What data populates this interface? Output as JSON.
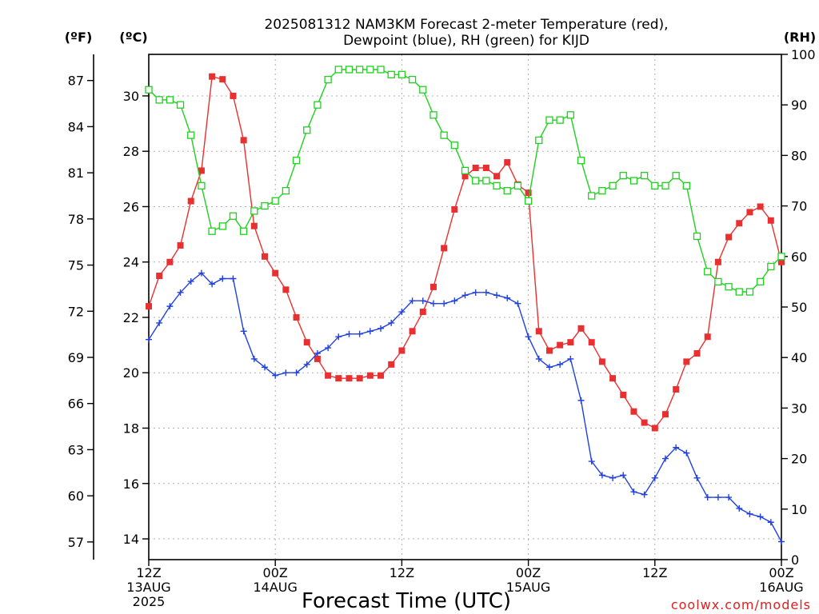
{
  "chart_data": {
    "type": "line",
    "title": "2025081312 NAM3KM Forecast 2-meter Temperature (red),",
    "subtitle": "Dewpoint (blue), RH (green) for KIJD",
    "xlabel": "Forecast Time (UTC)",
    "credit": "coolwx.com/models",
    "units": {
      "left_outer": "(ºF)",
      "left_inner": "(ºC)",
      "right": "(RH)"
    },
    "x_ticks": [
      {
        "hour": 0,
        "line1": "12Z",
        "line2": "13AUG",
        "line3": "2025"
      },
      {
        "hour": 12,
        "line1": "00Z",
        "line2": "14AUG",
        "line3": ""
      },
      {
        "hour": 24,
        "line1": "12Z",
        "line2": "",
        "line3": ""
      },
      {
        "hour": 36,
        "line1": "00Z",
        "line2": "15AUG",
        "line3": ""
      },
      {
        "hour": 48,
        "line1": "12Z",
        "line2": "",
        "line3": ""
      },
      {
        "hour": 60,
        "line1": "00Z",
        "line2": "16AUG",
        "line3": ""
      }
    ],
    "xlim": [
      0,
      60
    ],
    "celsius_ticks": [
      "14",
      "16",
      "18",
      "20",
      "22",
      "24",
      "26",
      "28",
      "30"
    ],
    "ylim_celsius": [
      13.25,
      31.5
    ],
    "fahrenheit_ticks": [
      "57",
      "60",
      "63",
      "66",
      "69",
      "72",
      "75",
      "78",
      "81",
      "84",
      "87"
    ],
    "rh_ticks": [
      "0",
      "10",
      "20",
      "30",
      "40",
      "50",
      "60",
      "70",
      "80",
      "90",
      "100"
    ],
    "ylim_rh": [
      0,
      100
    ],
    "series": [
      {
        "name": "Temperature",
        "color": "#e83030",
        "marker": "filled-square",
        "axis": "celsius",
        "x": [
          0,
          1,
          2,
          3,
          4,
          5,
          6,
          7,
          8,
          9,
          10,
          11,
          12,
          13,
          14,
          15,
          16,
          17,
          18,
          19,
          20,
          21,
          22,
          23,
          24,
          25,
          26,
          27,
          28,
          29,
          30,
          31,
          32,
          33,
          34,
          35,
          36,
          37,
          38,
          39,
          40,
          41,
          42,
          43,
          44,
          45,
          46,
          47,
          48,
          49,
          50,
          51,
          52,
          53,
          54,
          55,
          56,
          57,
          58,
          59,
          60
        ],
        "values": [
          22.4,
          23.5,
          24.0,
          24.6,
          26.2,
          27.3,
          30.7,
          30.6,
          30.0,
          28.4,
          25.3,
          24.2,
          23.6,
          23.0,
          22.0,
          21.1,
          20.5,
          19.9,
          19.8,
          19.8,
          19.8,
          19.9,
          19.9,
          20.3,
          20.8,
          21.5,
          22.2,
          23.1,
          24.5,
          25.9,
          27.1,
          27.4,
          27.4,
          27.1,
          27.6,
          26.8,
          26.5,
          21.5,
          20.8,
          21.0,
          21.1,
          21.6,
          21.1,
          20.4,
          19.8,
          19.2,
          18.6,
          18.2,
          18.0,
          18.5,
          19.4,
          20.4,
          20.7,
          21.3,
          24.0,
          24.9,
          25.4,
          25.8,
          26.0,
          25.5,
          24.0
        ]
      },
      {
        "name": "Dewpoint",
        "color": "#2040e0",
        "marker": "plus",
        "axis": "celsius",
        "x": [
          0,
          1,
          2,
          3,
          4,
          5,
          6,
          7,
          8,
          9,
          10,
          11,
          12,
          13,
          14,
          15,
          16,
          17,
          18,
          19,
          20,
          21,
          22,
          23,
          24,
          25,
          26,
          27,
          28,
          29,
          30,
          31,
          32,
          33,
          34,
          35,
          36,
          37,
          38,
          39,
          40,
          41,
          42,
          43,
          44,
          45,
          46,
          47,
          48,
          49,
          50,
          51,
          52,
          53,
          54,
          55,
          56,
          57,
          58,
          59,
          60
        ],
        "values": [
          21.2,
          21.8,
          22.4,
          22.9,
          23.3,
          23.6,
          23.2,
          23.4,
          23.4,
          21.5,
          20.5,
          20.2,
          19.9,
          20.0,
          20.0,
          20.3,
          20.7,
          20.9,
          21.3,
          21.4,
          21.4,
          21.5,
          21.6,
          21.8,
          22.2,
          22.6,
          22.6,
          22.5,
          22.5,
          22.6,
          22.8,
          22.9,
          22.9,
          22.8,
          22.7,
          22.5,
          21.3,
          20.5,
          20.2,
          20.3,
          20.5,
          19.0,
          16.8,
          16.3,
          16.2,
          16.3,
          15.7,
          15.6,
          16.2,
          16.9,
          17.3,
          17.1,
          16.2,
          15.5,
          15.5,
          15.5,
          15.1,
          14.9,
          14.8,
          14.6,
          13.9
        ]
      },
      {
        "name": "RH",
        "color": "#20d020",
        "marker": "open-square",
        "axis": "rh",
        "x": [
          0,
          1,
          2,
          3,
          4,
          5,
          6,
          7,
          8,
          9,
          10,
          11,
          12,
          13,
          14,
          15,
          16,
          17,
          18,
          19,
          20,
          21,
          22,
          23,
          24,
          25,
          26,
          27,
          28,
          29,
          30,
          31,
          32,
          33,
          34,
          35,
          36,
          37,
          38,
          39,
          40,
          41,
          42,
          43,
          44,
          45,
          46,
          47,
          48,
          49,
          50,
          51,
          52,
          53,
          54,
          55,
          56,
          57,
          58,
          59,
          60
        ],
        "values": [
          93,
          91,
          91,
          90,
          84,
          74,
          65,
          66,
          68,
          65,
          69,
          70,
          71,
          73,
          79,
          85,
          90,
          95,
          97,
          97,
          97,
          97,
          97,
          96,
          96,
          95,
          93,
          88,
          84,
          82,
          77,
          75,
          75,
          74,
          73,
          74,
          71,
          83,
          87,
          87,
          88,
          79,
          72,
          73,
          74,
          76,
          75,
          76,
          74,
          74,
          76,
          74,
          64,
          57,
          55,
          54,
          53,
          53,
          55,
          58,
          60
        ]
      }
    ]
  }
}
